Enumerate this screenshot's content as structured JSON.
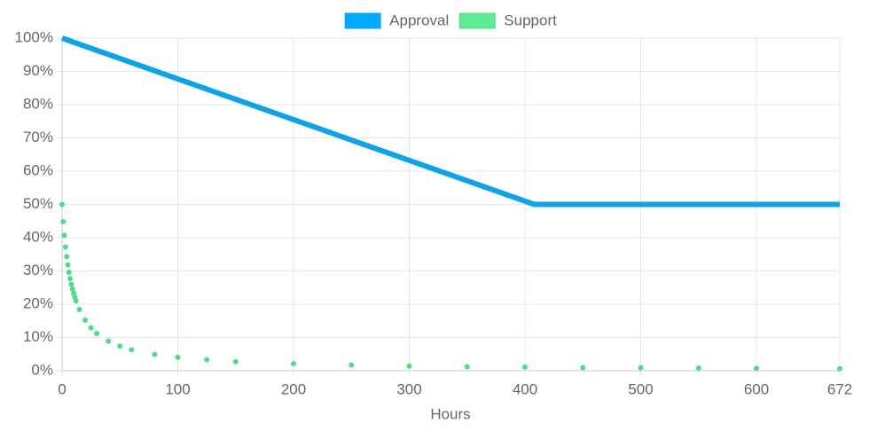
{
  "chart_data": {
    "type": "line",
    "xlabel": "Hours",
    "xlim": [
      0,
      672
    ],
    "xticks": [
      0,
      100,
      200,
      300,
      400,
      500,
      600,
      672
    ],
    "ylim": [
      0,
      100
    ],
    "yticks": [
      {
        "value": 0,
        "label": "0%"
      },
      {
        "value": 10,
        "label": "10%"
      },
      {
        "value": 20,
        "label": "20%"
      },
      {
        "value": 30,
        "label": "30%"
      },
      {
        "value": 40,
        "label": "40%"
      },
      {
        "value": 50,
        "label": "50%"
      },
      {
        "value": 60,
        "label": "60%"
      },
      {
        "value": 70,
        "label": "70%"
      },
      {
        "value": 80,
        "label": "80%"
      },
      {
        "value": 90,
        "label": "90%"
      },
      {
        "value": 100,
        "label": "100%"
      }
    ],
    "grid": true,
    "legend": "top",
    "series": [
      {
        "name": "Approval",
        "color": "#0ea2e6",
        "legend_color": "#00aaff",
        "mode": "line",
        "x": [
          0,
          408,
          672
        ],
        "values": [
          100,
          50,
          50
        ]
      },
      {
        "name": "Support",
        "color": "#52d98a",
        "legend_color": "#5ced94",
        "mode": "points",
        "x": [
          0,
          1,
          2,
          3,
          4,
          5,
          6,
          7,
          8,
          9,
          10,
          11,
          12,
          15,
          20,
          25,
          30,
          40,
          50,
          60,
          80,
          100,
          125,
          150,
          200,
          250,
          300,
          350,
          400,
          450,
          500,
          550,
          600,
          672
        ],
        "values": [
          50,
          44.8,
          40.7,
          37.2,
          34.3,
          31.8,
          29.6,
          27.7,
          26.0,
          24.6,
          23.3,
          22.1,
          21.0,
          18.4,
          15.2,
          12.9,
          11.2,
          8.9,
          7.4,
          6.3,
          4.9,
          4.0,
          3.3,
          2.7,
          2.1,
          1.7,
          1.4,
          1.2,
          1.1,
          0.9,
          0.9,
          0.8,
          0.7,
          0.6
        ]
      }
    ]
  }
}
